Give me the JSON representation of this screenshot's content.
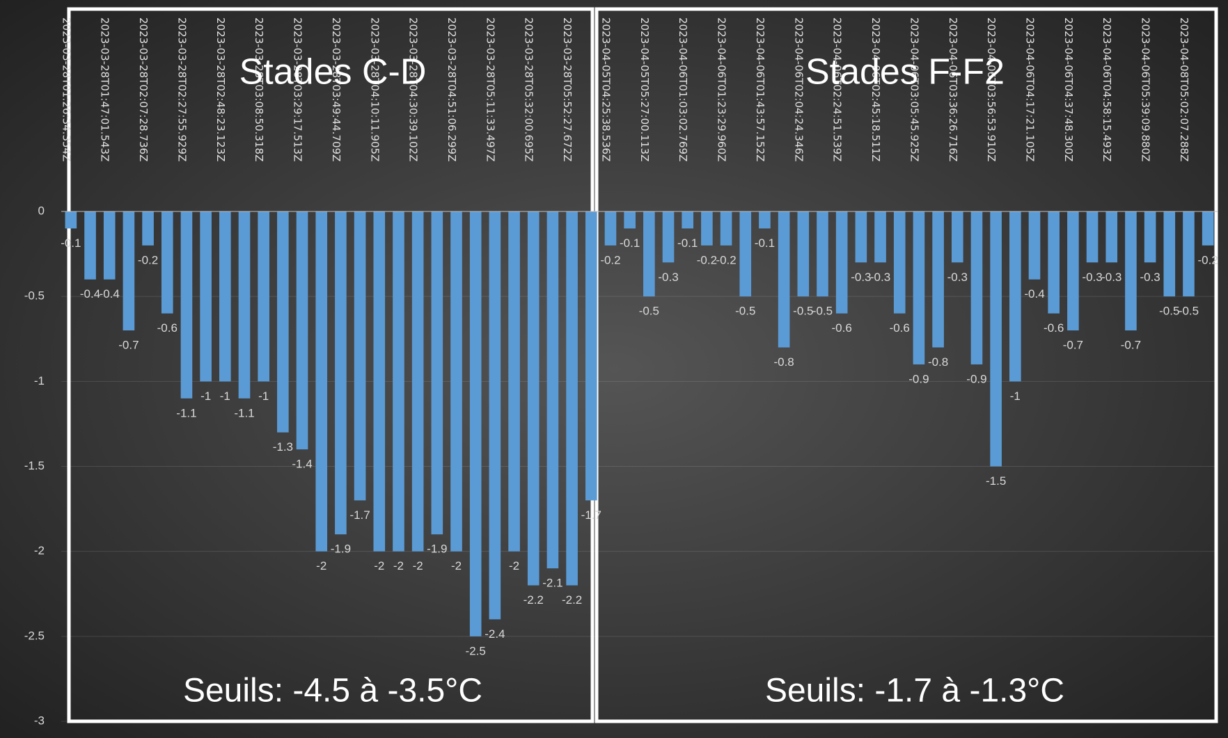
{
  "chart_data": {
    "type": "bar",
    "categories": [
      "2023-03-28T01:26:34.354Z",
      null,
      "2023-03-28T01:47:01.543Z",
      null,
      "2023-03-28T02:07:28.736Z",
      null,
      "2023-03-28T02:27:55.929Z",
      null,
      "2023-03-28T02:48:23.123Z",
      null,
      "2023-03-28T03:08:50.318Z",
      null,
      "2023-03-28T03:29:17.513Z",
      null,
      "2023-03-28T03:49:44.709Z",
      null,
      "2023-03-28T04:10:11.905Z",
      null,
      "2023-03-28T04:30:39.102Z",
      null,
      "2023-03-28T04:51:06.299Z",
      null,
      "2023-03-28T05:11:33.497Z",
      null,
      "2023-03-28T05:32:00.695Z",
      null,
      "2023-03-28T05:52:27.672Z",
      null,
      "2023-04-05T04:25:38.536Z",
      null,
      "2023-04-05T05:27:00.113Z",
      null,
      "2023-04-06T01:03:02.769Z",
      null,
      "2023-04-06T01:23:29.960Z",
      null,
      "2023-04-06T01:43:57.152Z",
      null,
      "2023-04-06T02:04:24.346Z",
      null,
      "2023-04-06T02:24:51.539Z",
      null,
      "2023-04-06T02:45:18.511Z",
      null,
      "2023-04-06T03:05:45.925Z",
      null,
      "2023-04-06T03:36:26.716Z",
      null,
      "2023-04-06T03:56:53.910Z",
      null,
      "2023-04-06T04:17:21.105Z",
      null,
      "2023-04-06T04:37:48.300Z",
      null,
      "2023-04-06T04:58:15.493Z",
      null,
      "2023-04-06T05:39:09.880Z",
      null,
      "2023-04-08T05:02:07.288Z",
      null
    ],
    "values": [
      -0.1,
      -0.4,
      -0.4,
      -0.7,
      -0.2,
      -0.6,
      -1.1,
      -1,
      -1,
      -1.1,
      -1,
      -1.3,
      -1.4,
      -2,
      -1.9,
      -1.7,
      -2,
      -2,
      -2,
      -1.9,
      -2,
      -2.5,
      -2.4,
      -2,
      -2.2,
      -2.1,
      -2.2,
      -1.7,
      -0.2,
      -0.1,
      -0.5,
      -0.3,
      -0.1,
      -0.2,
      -0.2,
      -0.5,
      -0.1,
      -0.8,
      -0.5,
      -0.5,
      -0.6,
      -0.3,
      -0.3,
      -0.6,
      -0.9,
      -0.8,
      -0.3,
      -0.9,
      -1.5,
      -1,
      -0.4,
      -0.6,
      -0.7,
      -0.3,
      -0.3,
      -0.7,
      -0.3,
      -0.5,
      -0.5,
      -0.2
    ],
    "color": "#5b9bd5",
    "ylim": [
      -3,
      0
    ],
    "yticks": [
      0,
      -0.5,
      -1,
      -1.5,
      -2,
      -2.5,
      -3
    ],
    "grid": true,
    "panels": [
      {
        "title": "Stades C-D",
        "note": "Seuils: -4.5 à -3.5°C"
      },
      {
        "title": "Stades F-F2",
        "note": "Seuils: -1.7 à -1.3°C"
      }
    ]
  }
}
